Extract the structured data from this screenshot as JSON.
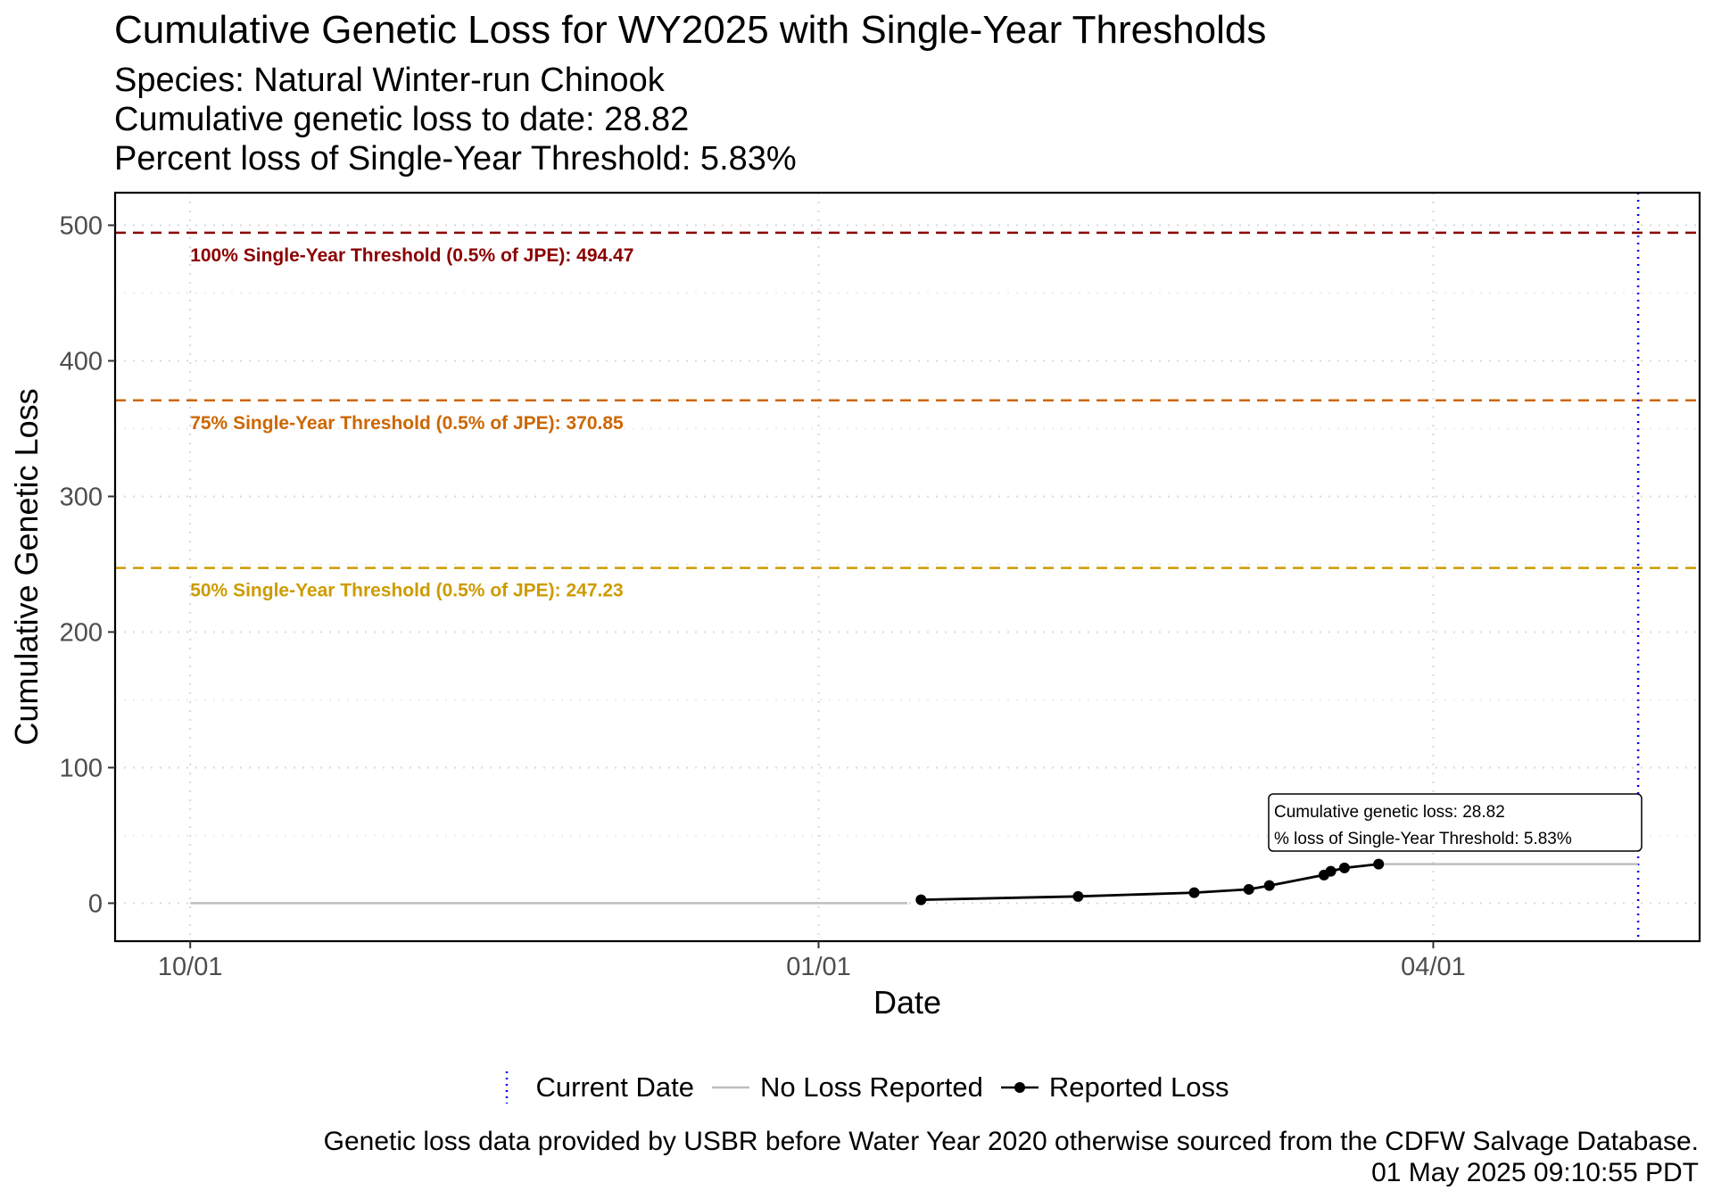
{
  "title": "Cumulative Genetic Loss for WY2025 with Single-Year Thresholds",
  "subtitle": {
    "line1": "Species: Natural Winter-run Chinook",
    "line2": "Cumulative genetic loss to date: 28.82",
    "line3": "Percent loss of Single-Year Threshold: 5.83%"
  },
  "caption": {
    "line1": "Genetic loss data provided by USBR before Water Year 2020 otherwise sourced from the CDFW Salvage Database.",
    "line2": "01 May 2025 09:10:55 PDT"
  },
  "legend": {
    "current_date": "Current Date",
    "no_loss": "No Loss Reported",
    "reported_loss": "Reported Loss"
  },
  "colors": {
    "threshold_100": "#8B0000",
    "threshold_75": "#CD6600",
    "threshold_50": "#CD9B00",
    "current_date": "#0000FF",
    "no_loss": "#BEBEBE",
    "reported_loss": "#000000"
  },
  "chart_data": {
    "type": "line",
    "xlabel": "Date",
    "ylabel": "Cumulative Genetic Loss",
    "xlim": [
      "2024-09-20",
      "2025-05-10"
    ],
    "ylim": [
      -28,
      524
    ],
    "x_ticks": [
      {
        "date": "2024-10-01",
        "label": "10/01"
      },
      {
        "date": "2025-01-01",
        "label": "01/01"
      },
      {
        "date": "2025-04-01",
        "label": "04/01"
      }
    ],
    "y_ticks": [
      0,
      100,
      200,
      300,
      400,
      500
    ],
    "grid": "dotted",
    "legend_position": "bottom",
    "series": [
      {
        "name": "No Loss Reported",
        "points": [
          {
            "date": "2024-10-01",
            "y": 0
          },
          {
            "date": "2025-01-14",
            "y": 0
          }
        ]
      },
      {
        "name": "Reported Loss",
        "points": [
          {
            "date": "2025-01-16",
            "y": 2.5
          },
          {
            "date": "2025-02-08",
            "y": 5.0
          },
          {
            "date": "2025-02-25",
            "y": 7.8
          },
          {
            "date": "2025-03-05",
            "y": 10.2
          },
          {
            "date": "2025-03-08",
            "y": 13.0
          },
          {
            "date": "2025-03-16",
            "y": 20.8
          },
          {
            "date": "2025-03-17",
            "y": 23.6
          },
          {
            "date": "2025-03-19",
            "y": 26.0
          },
          {
            "date": "2025-03-24",
            "y": 28.82
          }
        ]
      },
      {
        "name": "No Loss Reported",
        "points": [
          {
            "date": "2025-03-24",
            "y": 28.82
          },
          {
            "date": "2025-05-01",
            "y": 28.82
          }
        ]
      }
    ],
    "thresholds": [
      {
        "key": "threshold_100",
        "value": 494.47,
        "label": "100% Single-Year Threshold (0.5% of JPE): 494.47"
      },
      {
        "key": "threshold_75",
        "value": 370.85,
        "label": "75% Single-Year Threshold (0.5% of JPE): 370.85"
      },
      {
        "key": "threshold_50",
        "value": 247.23,
        "label": "50% Single-Year Threshold (0.5% of JPE): 247.23"
      }
    ],
    "current_date": "2025-05-01",
    "annotation": {
      "line1": "Cumulative genetic loss: 28.82",
      "line2": "% loss of Single-Year Threshold: 5.83%"
    }
  }
}
